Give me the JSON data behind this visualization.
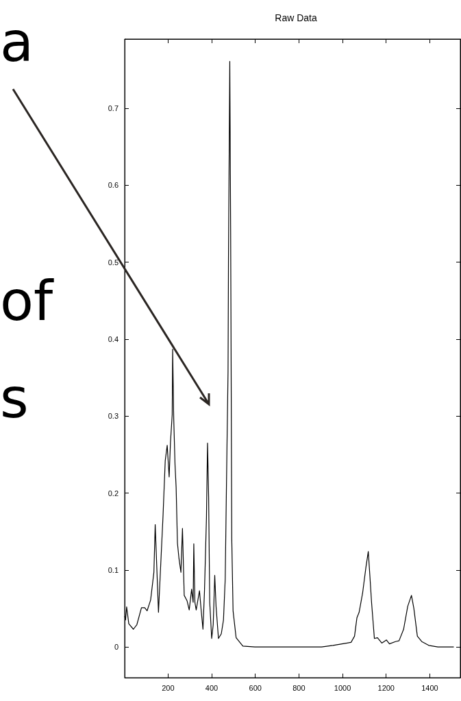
{
  "chart_data": {
    "type": "line",
    "title": "Raw Data",
    "annotations": [
      "a",
      "of",
      "s"
    ],
    "series": [
      {
        "color": "#000000",
        "x": [
          1,
          5,
          10,
          20,
          41,
          57,
          78,
          93,
          104,
          120,
          135,
          141,
          156,
          177,
          187,
          196,
          205,
          211,
          219,
          221,
          226,
          232,
          237,
          243,
          250,
          259,
          266,
          274,
          287,
          297,
          308,
          315,
          318,
          323,
          329,
          344,
          352,
          360,
          367,
          376,
          381,
          386,
          391,
          400,
          407,
          414,
          420,
          431,
          444,
          454,
          462,
          470,
          475,
          477,
          483,
          487,
          492,
          498,
          512,
          543,
          598,
          797,
          904,
          956,
          998,
          1039,
          1055,
          1066,
          1076,
          1092,
          1107,
          1118,
          1125,
          1133,
          1146,
          1160,
          1180,
          1201,
          1215,
          1243,
          1259,
          1280,
          1299,
          1316,
          1327,
          1343,
          1363,
          1395,
          1437,
          1510
        ],
        "values": [
          0.04,
          0.035,
          0.052,
          0.03,
          0.023,
          0.029,
          0.051,
          0.051,
          0.047,
          0.061,
          0.097,
          0.159,
          0.045,
          0.171,
          0.242,
          0.262,
          0.221,
          0.266,
          0.302,
          0.387,
          0.296,
          0.236,
          0.207,
          0.135,
          0.115,
          0.097,
          0.154,
          0.067,
          0.06,
          0.048,
          0.075,
          0.058,
          0.134,
          0.058,
          0.048,
          0.073,
          0.047,
          0.023,
          0.073,
          0.168,
          0.265,
          0.195,
          0.058,
          0.011,
          0.029,
          0.093,
          0.053,
          0.011,
          0.017,
          0.035,
          0.088,
          0.257,
          0.358,
          0.502,
          0.761,
          0.54,
          0.141,
          0.047,
          0.012,
          0.001,
          0,
          0,
          0,
          0.002,
          0.004,
          0.006,
          0.014,
          0.038,
          0.045,
          0.07,
          0.103,
          0.124,
          0.094,
          0.058,
          0.011,
          0.012,
          0.005,
          0.009,
          0.004,
          0.007,
          0.008,
          0.023,
          0.053,
          0.067,
          0.05,
          0.014,
          0.007,
          0.002,
          0,
          0
        ]
      }
    ],
    "xlim": [
      1,
      1540
    ],
    "xticks": [
      200,
      400,
      600,
      800,
      1000,
      1200,
      1400
    ],
    "ylim": [
      -0.04,
      0.79
    ],
    "yticks": [
      0,
      0.1,
      0.2,
      0.3,
      0.4,
      0.5,
      0.6,
      0.7
    ],
    "grid": false,
    "marker": "none",
    "line_style": "solid"
  }
}
